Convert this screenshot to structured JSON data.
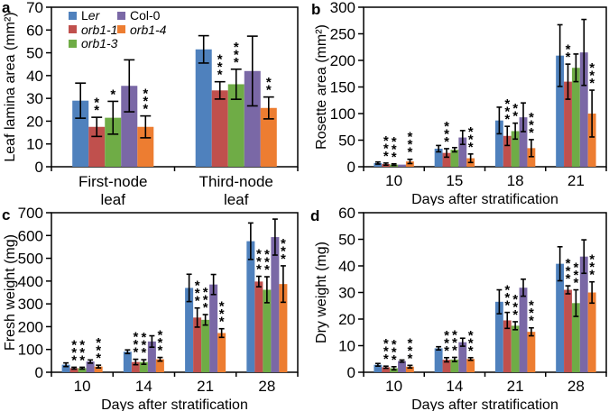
{
  "figure": {
    "panel_letters": {
      "a": "a",
      "b": "b",
      "c": "c",
      "d": "d"
    },
    "axis_color": "#000000",
    "star_color": "#3a3a3a",
    "background": "#ffffff"
  },
  "legend": {
    "entries": [
      {
        "label": "Ler",
        "style": "mixed",
        "color": "#4F81BD"
      },
      {
        "label": "orb1-1",
        "style": "italic",
        "color": "#C0504D"
      },
      {
        "label": "orb1-3",
        "style": "italic",
        "color": "#6FAC46"
      },
      {
        "label": "Col-0",
        "style": "normal",
        "color": "#7A68A6"
      },
      {
        "label": "orb1-4",
        "style": "italic",
        "color": "#ED7D31"
      }
    ]
  },
  "chart_data": [
    {
      "panel": "a",
      "type": "bar",
      "title": "",
      "ylabel": "Leaf lamina area (mm²)",
      "xlabel": "",
      "ylim": [
        0,
        70
      ],
      "ytick_step": 10,
      "grid": false,
      "legend_position": "upper-left",
      "categories": [
        "First-node\nleaf",
        "Third-node\nleaf"
      ],
      "series": [
        {
          "name": "Ler",
          "color": "#4F81BD",
          "values": [
            29,
            51.5
          ],
          "errors": [
            7.7,
            6
          ],
          "sig": [
            "",
            ""
          ]
        },
        {
          "name": "orb1-1",
          "color": "#C0504D",
          "values": [
            17.5,
            33.5
          ],
          "errors": [
            4.2,
            3.8
          ],
          "sig": [
            "**",
            "***"
          ]
        },
        {
          "name": "orb1-3",
          "color": "#6FAC46",
          "values": [
            21.5,
            36.2
          ],
          "errors": [
            7.2,
            6.6
          ],
          "sig": [
            "*",
            "***"
          ]
        },
        {
          "name": "Col-0",
          "color": "#7A68A6",
          "values": [
            35.5,
            42
          ],
          "errors": [
            11.4,
            15.3
          ],
          "sig": [
            "",
            ""
          ]
        },
        {
          "name": "orb1-4",
          "color": "#ED7D31",
          "values": [
            17.5,
            25.8
          ],
          "errors": [
            4.8,
            4.8
          ],
          "sig": [
            "***",
            "**"
          ]
        }
      ]
    },
    {
      "panel": "b",
      "type": "bar",
      "title": "",
      "ylabel": "Rosette area (mm²)",
      "xlabel": "Days after stratification",
      "ylim": [
        0,
        300
      ],
      "ytick_step": 50,
      "grid": false,
      "legend_position": "none",
      "categories": [
        "10",
        "15",
        "18",
        "21"
      ],
      "series": [
        {
          "name": "Ler",
          "color": "#4F81BD",
          "values": [
            7,
            34,
            87,
            209
          ],
          "errors": [
            2,
            6,
            25,
            58
          ],
          "sig": [
            "",
            "",
            "",
            ""
          ]
        },
        {
          "name": "orb1-1",
          "color": "#C0504D",
          "values": [
            5,
            26,
            58,
            160
          ],
          "errors": [
            2,
            8,
            18,
            33
          ],
          "sig": [
            "***",
            "***",
            "***",
            "**"
          ]
        },
        {
          "name": "orb1-3",
          "color": "#6FAC46",
          "values": [
            4,
            32,
            67,
            186
          ],
          "errors": [
            1.5,
            4,
            15,
            26
          ],
          "sig": [
            "***",
            "",
            "**",
            ""
          ]
        },
        {
          "name": "Col-0",
          "color": "#7A68A6",
          "values": [
            4,
            55,
            93,
            215
          ],
          "errors": [
            0,
            13,
            27,
            62
          ],
          "sig": [
            "",
            "",
            "",
            ""
          ]
        },
        {
          "name": "orb1-4",
          "color": "#ED7D31",
          "values": [
            10,
            16,
            35,
            100
          ],
          "errors": [
            4,
            8,
            16,
            44
          ],
          "sig": [
            "***",
            "***",
            "***",
            "***"
          ]
        }
      ]
    },
    {
      "panel": "c",
      "type": "bar",
      "title": "",
      "ylabel": "Fresh weight (mg)",
      "xlabel": "Days after stratification",
      "ylim": [
        0,
        700
      ],
      "ytick_step": 100,
      "grid": false,
      "legend_position": "none",
      "categories": [
        "10",
        "14",
        "21",
        "28"
      ],
      "series": [
        {
          "name": "Ler",
          "color": "#4F81BD",
          "values": [
            33,
            90,
            370,
            575
          ],
          "errors": [
            8,
            8,
            60,
            80
          ],
          "sig": [
            "",
            "",
            "",
            ""
          ]
        },
        {
          "name": "orb1-1",
          "color": "#C0504D",
          "values": [
            18,
            45,
            240,
            398
          ],
          "errors": [
            4,
            12,
            42,
            23
          ],
          "sig": [
            "***",
            "***",
            "***",
            "***"
          ]
        },
        {
          "name": "orb1-3",
          "color": "#6FAC46",
          "values": [
            18,
            45,
            230,
            362
          ],
          "errors": [
            4,
            10,
            23,
            57
          ],
          "sig": [
            "***",
            "***",
            "***",
            "***"
          ]
        },
        {
          "name": "Col-0",
          "color": "#7A68A6",
          "values": [
            47,
            135,
            385,
            593
          ],
          "errors": [
            7,
            25,
            44,
            79
          ],
          "sig": [
            "",
            "",
            "",
            ""
          ]
        },
        {
          "name": "orb1-4",
          "color": "#ED7D31",
          "values": [
            25,
            57,
            172,
            387
          ],
          "errors": [
            6,
            8,
            19,
            80
          ],
          "sig": [
            "***",
            "***",
            "***",
            "***"
          ]
        }
      ]
    },
    {
      "panel": "d",
      "type": "bar",
      "title": "",
      "ylabel": "Dry weight (mg)",
      "xlabel": "Days after stratification",
      "ylim": [
        0,
        60
      ],
      "ytick_step": 10,
      "grid": false,
      "legend_position": "none",
      "categories": [
        "10",
        "14",
        "21",
        "28"
      ],
      "series": [
        {
          "name": "Ler",
          "color": "#4F81BD",
          "values": [
            2.8,
            9,
            26.5,
            40.8
          ],
          "errors": [
            0.5,
            0.6,
            4.5,
            6.4
          ],
          "sig": [
            "",
            "",
            "",
            ""
          ]
        },
        {
          "name": "orb1-1",
          "color": "#C0504D",
          "values": [
            1.9,
            4.7,
            19.5,
            31
          ],
          "errors": [
            0.4,
            0.8,
            3,
            1.5
          ],
          "sig": [
            "***",
            "***",
            "***",
            "***"
          ]
        },
        {
          "name": "orb1-3",
          "color": "#6FAC46",
          "values": [
            1.5,
            4.8,
            17.5,
            26
          ],
          "errors": [
            0.6,
            0.8,
            1.5,
            5
          ],
          "sig": [
            "***",
            "***",
            "***",
            "***"
          ]
        },
        {
          "name": "Col-0",
          "color": "#7A68A6",
          "values": [
            4.2,
            11.3,
            31.8,
            43.5
          ],
          "errors": [
            0.4,
            1.5,
            3.2,
            6.3
          ],
          "sig": [
            "",
            "",
            "",
            ""
          ]
        },
        {
          "name": "orb1-4",
          "color": "#ED7D31",
          "values": [
            2.1,
            5,
            15.2,
            30
          ],
          "errors": [
            0.5,
            0.5,
            1.5,
            4
          ],
          "sig": [
            "***",
            "***",
            "***",
            "***"
          ]
        }
      ]
    }
  ]
}
